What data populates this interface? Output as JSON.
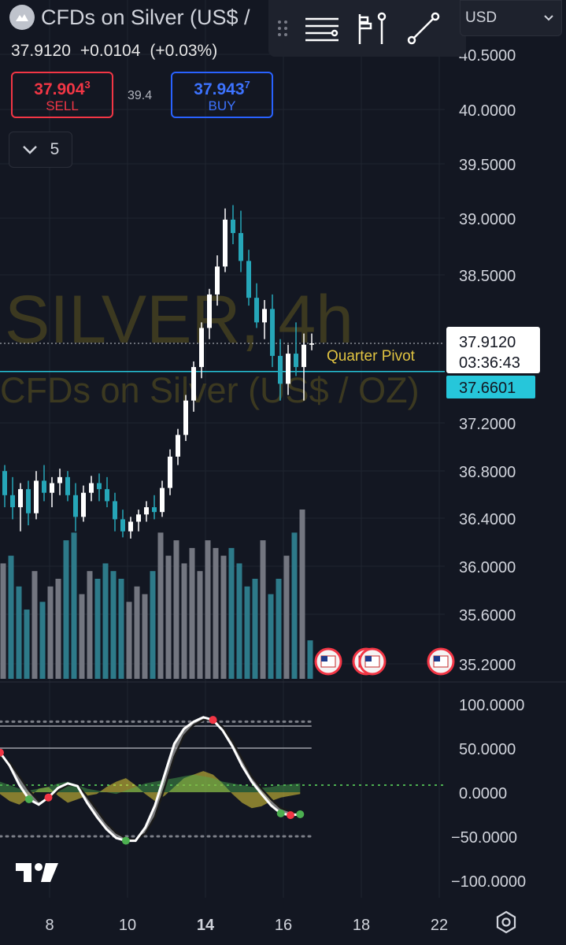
{
  "header": {
    "symbol_title": "CFDs on Silver (US$ /",
    "last_price": "37.9120",
    "change": "+0.0104",
    "change_pct": "(+0.03%)",
    "currency": "USD"
  },
  "trade": {
    "sell_price_main": "37.904",
    "sell_price_sup": "3",
    "sell_label": "SELL",
    "spread": "39.4",
    "buy_price_main": "37.943",
    "buy_price_sup": "7",
    "buy_label": "BUY"
  },
  "collapse": {
    "count": "5"
  },
  "toolbar": {
    "icons": [
      "drag-handle-icon",
      "indicators-icon",
      "alert-icon",
      "trendline-icon"
    ]
  },
  "colors": {
    "background": "#131722",
    "up_candle": "#ffffff",
    "down_candle": "#26a6b8",
    "watermark": "#4a4520",
    "pivot": "#e0c341",
    "pivot_line": "#26c6da",
    "oscillator_fill": "#9e9e9e",
    "oscillator_green": "#4caf50",
    "oscillator_yellow": "#e6d23a"
  },
  "chart_data": {
    "type": "candlestick",
    "watermark_line1": "SILVER, 4h",
    "watermark_line2": "CFDs on Silver (US$ / OZ)",
    "y_ticks": [
      "40.5000",
      "40.0000",
      "39.5000",
      "39.0000",
      "38.5000",
      "37.2000",
      "36.8000",
      "36.4000",
      "36.0000",
      "35.6000",
      "35.2000"
    ],
    "x_ticks": [
      "8",
      "10",
      "14",
      "16",
      "18",
      "22"
    ],
    "x_bold_tick": "14",
    "current_price_label": "37.9120",
    "countdown": "03:36:43",
    "pivot_label": "Quarter Pivot",
    "pivot_value_label": "37.6601",
    "pivot_value": 37.6601,
    "current_price": 37.912,
    "candles": [
      [
        36.8,
        36.85,
        36.5,
        36.6
      ],
      [
        36.6,
        36.75,
        36.4,
        36.5
      ],
      [
        36.5,
        36.7,
        36.3,
        36.65
      ],
      [
        36.65,
        36.72,
        36.35,
        36.45
      ],
      [
        36.45,
        36.8,
        36.4,
        36.72
      ],
      [
        36.72,
        36.85,
        36.55,
        36.62
      ],
      [
        36.62,
        36.75,
        36.5,
        36.7
      ],
      [
        36.7,
        36.82,
        36.6,
        36.75
      ],
      [
        36.75,
        36.8,
        36.55,
        36.6
      ],
      [
        36.6,
        36.7,
        36.3,
        36.42
      ],
      [
        36.42,
        36.68,
        36.38,
        36.62
      ],
      [
        36.62,
        36.76,
        36.55,
        36.7
      ],
      [
        36.7,
        36.78,
        36.55,
        36.65
      ],
      [
        36.65,
        36.75,
        36.5,
        36.55
      ],
      [
        36.55,
        36.62,
        36.3,
        36.4
      ],
      [
        36.4,
        36.48,
        36.25,
        36.3
      ],
      [
        36.3,
        36.42,
        36.24,
        36.38
      ],
      [
        36.38,
        36.48,
        36.3,
        36.44
      ],
      [
        36.44,
        36.55,
        36.38,
        36.5
      ],
      [
        36.5,
        36.6,
        36.4,
        36.46
      ],
      [
        36.46,
        36.72,
        36.42,
        36.66
      ],
      [
        36.66,
        36.98,
        36.6,
        36.92
      ],
      [
        36.92,
        37.15,
        36.85,
        37.1
      ],
      [
        37.1,
        37.45,
        37.05,
        37.4
      ],
      [
        37.4,
        37.75,
        37.3,
        37.7
      ],
      [
        37.7,
        38.1,
        37.6,
        38.05
      ],
      [
        38.05,
        38.4,
        37.95,
        38.35
      ],
      [
        38.35,
        38.7,
        38.25,
        38.6
      ],
      [
        38.6,
        39.12,
        38.55,
        39.02
      ],
      [
        39.02,
        39.15,
        38.8,
        38.9
      ],
      [
        38.9,
        39.1,
        38.55,
        38.65
      ],
      [
        38.65,
        38.75,
        38.25,
        38.32
      ],
      [
        38.32,
        38.45,
        38.05,
        38.1
      ],
      [
        38.1,
        38.3,
        37.95,
        38.22
      ],
      [
        38.22,
        38.35,
        37.7,
        37.8
      ],
      [
        37.8,
        37.95,
        37.4,
        37.55
      ],
      [
        37.55,
        37.9,
        37.45,
        37.82
      ],
      [
        37.82,
        38.1,
        37.62,
        37.7
      ],
      [
        37.7,
        38.0,
        37.4,
        37.9
      ],
      [
        37.9,
        38.0,
        37.85,
        37.912
      ]
    ],
    "volume_up_flags": [
      1,
      0,
      0,
      0,
      1,
      0,
      1,
      1,
      0,
      0,
      1,
      1,
      0,
      0,
      0,
      0,
      1,
      1,
      1,
      0,
      1,
      1,
      1,
      1,
      1,
      1,
      1,
      1,
      1,
      0,
      0,
      0,
      0,
      1,
      0,
      0,
      1,
      0,
      1,
      0
    ],
    "volume": [
      15,
      16,
      12,
      9,
      14,
      10,
      12,
      13,
      18,
      19,
      11,
      14,
      13,
      15,
      14,
      13,
      10,
      12,
      11,
      14,
      19,
      16,
      18,
      15,
      17,
      14,
      18,
      17,
      16,
      17,
      15,
      12,
      13,
      18,
      11,
      13,
      16,
      19,
      22,
      5
    ],
    "oscillator": {
      "y_ticks": [
        "100.0000",
        "50.0000",
        "0.0000",
        "−50.0000",
        "−100.0000"
      ],
      "levels": [
        75,
        50,
        -50
      ],
      "main": [
        45,
        30,
        8,
        -8,
        -14,
        -6,
        5,
        10,
        7,
        -12,
        -28,
        -42,
        -52,
        -55,
        -55,
        -40,
        -15,
        20,
        55,
        72,
        80,
        85,
        82,
        70,
        52,
        30,
        12,
        -2,
        -15,
        -24,
        -26,
        -25
      ],
      "signal": [
        40,
        34,
        18,
        2,
        -10,
        -10,
        2,
        8,
        8,
        -5,
        -20,
        -35,
        -46,
        -52,
        -54,
        -47,
        -28,
        5,
        40,
        64,
        76,
        82,
        83,
        74,
        58,
        38,
        18,
        4,
        -8,
        -18,
        -22,
        -24
      ],
      "green_band": [
        12,
        8,
        4,
        2,
        4,
        6,
        10,
        12,
        8,
        4,
        2,
        0,
        -2,
        2,
        6,
        10,
        12,
        14,
        16,
        18,
        20,
        18,
        16,
        12,
        10,
        8,
        6,
        5,
        6,
        8,
        9,
        10
      ],
      "yellow_band": [
        -2,
        -10,
        -14,
        -6,
        4,
        6,
        -4,
        -12,
        -8,
        -4,
        -2,
        6,
        12,
        16,
        8,
        -2,
        -10,
        -4,
        6,
        16,
        20,
        24,
        20,
        10,
        -2,
        -12,
        -18,
        -16,
        -10,
        -6,
        -4,
        -2
      ]
    }
  }
}
